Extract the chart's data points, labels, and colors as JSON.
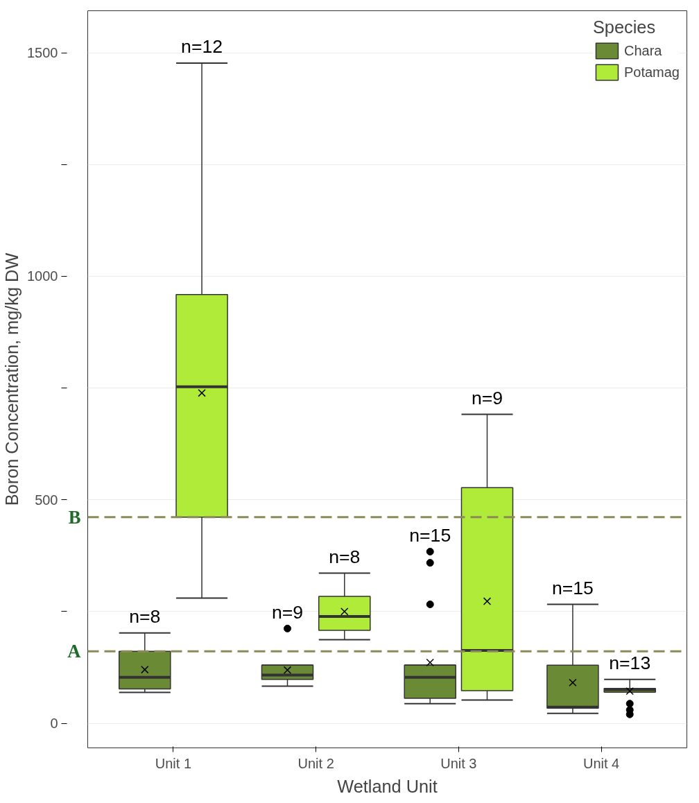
{
  "chart_data": {
    "type": "box",
    "xlabel": "Wetland Unit",
    "ylabel": "Boron Concentration, mg/kg DW",
    "legend_title": "Species",
    "legend": "top right",
    "grid": "y",
    "categories": [
      "Unit 1",
      "Unit 2",
      "Unit 3",
      "Unit 4"
    ],
    "ylim": [
      -55,
      1594
    ],
    "yticks": [
      0,
      {
        "value": 250,
        "label": null
      },
      500,
      {
        "value": 750,
        "label": null
      },
      1000,
      {
        "value": 1250,
        "label": null
      },
      1500
    ],
    "series": [
      {
        "name": "Chara",
        "color": "#6b8a35",
        "boxes": [
          {
            "low": 69,
            "q1": 77,
            "median": 103,
            "q3": 161,
            "high": 202,
            "mean": 120
          },
          {
            "low": 83,
            "q1": 98,
            "median": 108,
            "q3": 130,
            "high": 130,
            "mean": 119,
            "outliers": [
              212
            ]
          },
          {
            "low": 44,
            "q1": 56,
            "median": 103,
            "q3": 130,
            "high": 130,
            "mean": 136,
            "outliers": [
              384,
              359,
              266
            ]
          },
          {
            "low": 22,
            "q1": 34,
            "median": 36,
            "q3": 130,
            "high": 266,
            "mean": 91
          }
        ]
      },
      {
        "name": "Potamag",
        "color": "#b0eb3a",
        "boxes": [
          {
            "low": 280,
            "q1": 461,
            "median": 753,
            "q3": 959,
            "high": 1477,
            "mean": 739
          },
          {
            "low": 187,
            "q1": 208,
            "median": 239,
            "q3": 284,
            "high": 336,
            "mean": 250
          },
          {
            "low": 52,
            "q1": 73,
            "median": 163,
            "q3": 527,
            "high": 691,
            "mean": 273
          },
          {
            "low": 70,
            "q1": 70,
            "median": 75,
            "q3": 78,
            "high": 98,
            "mean": 72,
            "outliers": [
              44,
              30,
              20
            ]
          }
        ]
      }
    ],
    "ref_lines": [
      {
        "axis": "y",
        "value": 461,
        "label": "B",
        "color": "#8c8a5a",
        "line_style": "dashed"
      },
      {
        "axis": "y",
        "value": 161,
        "label": "A",
        "color": "#8c8a5a",
        "line_style": "dashed"
      }
    ],
    "annotations": [
      "n=8",
      "n=12",
      "n=9",
      "n=8",
      "n=15",
      "n=9",
      "n=15",
      "n=13"
    ]
  }
}
